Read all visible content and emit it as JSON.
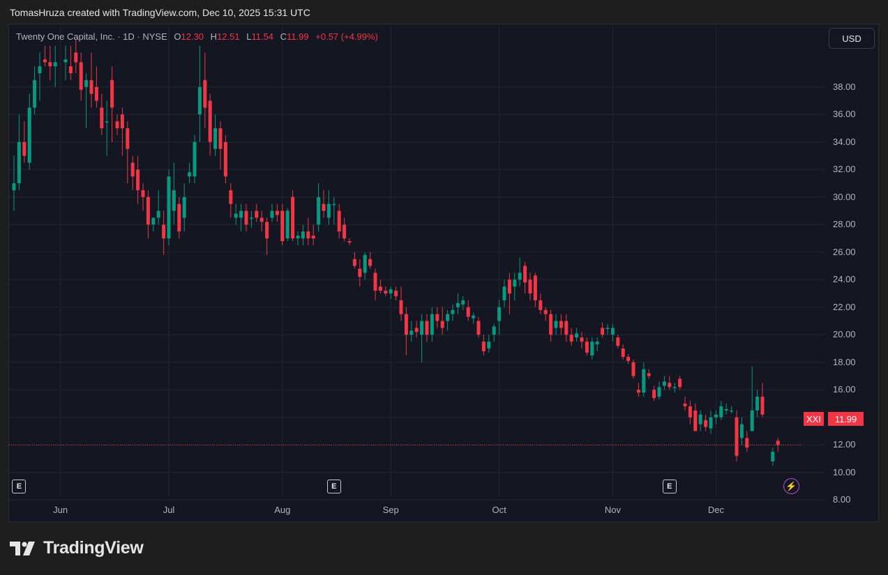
{
  "header": {
    "attribution": "TomasHruza created with TradingView.com, Dec 10, 2025 15:31 UTC"
  },
  "legend": {
    "name": "Twenty One Capital, Inc. · 1D · NYSE",
    "o_label": "O",
    "o_value": "12.30",
    "h_label": "H",
    "h_value": "12.51",
    "l_label": "L",
    "l_value": "11.54",
    "c_label": "C",
    "c_value": "11.99",
    "change": "+0.57 (+4.99%)"
  },
  "currency_button": "USD",
  "last_price": {
    "ticker": "XXI",
    "price": "11.99"
  },
  "markers": {
    "earnings_label": "E",
    "lightning_icon": "lightning-icon"
  },
  "branding": {
    "logo": "tradingview-logo",
    "name": "TradingView"
  },
  "colors": {
    "up": "#089981",
    "down": "#f23645",
    "background": "#141722",
    "grid": "#232733",
    "text": "#b2b5be"
  },
  "chart_data": {
    "type": "candlestick",
    "symbol": "XXI",
    "interval": "1D",
    "exchange": "NYSE",
    "y_ticks": [
      "38.00",
      "36.00",
      "34.00",
      "32.00",
      "30.00",
      "28.00",
      "26.00",
      "24.00",
      "22.00",
      "20.00",
      "18.00",
      "16.00",
      "14.00",
      "12.00",
      "10.00",
      "8.00"
    ],
    "y_axis_range": [
      7.3,
      40.4
    ],
    "x_ticks": [
      {
        "label": "Jun",
        "index": 9
      },
      {
        "label": "Jul",
        "index": 30
      },
      {
        "label": "Aug",
        "index": 52
      },
      {
        "label": "Sep",
        "index": 73
      },
      {
        "label": "Oct",
        "index": 94
      },
      {
        "label": "Nov",
        "index": 116
      },
      {
        "label": "Dec",
        "index": 136
      }
    ],
    "earnings_bars": [
      1,
      62,
      127
    ],
    "last_close": 11.99,
    "candles": [
      {
        "i": 0,
        "o": 30.5,
        "h": 33.0,
        "l": 29.0,
        "c": 31.0
      },
      {
        "i": 1,
        "o": 31.0,
        "h": 36.0,
        "l": 30.5,
        "c": 34.0
      },
      {
        "i": 2,
        "o": 34.0,
        "h": 35.5,
        "l": 32.5,
        "c": 33.0
      },
      {
        "i": 3,
        "o": 32.5,
        "h": 37.5,
        "l": 32.0,
        "c": 36.5
      },
      {
        "i": 4,
        "o": 36.5,
        "h": 39.5,
        "l": 36.0,
        "c": 38.5
      },
      {
        "i": 5,
        "o": 39.0,
        "h": 40.5,
        "l": 37.0,
        "c": 39.5
      },
      {
        "i": 6,
        "o": 40.0,
        "h": 41.0,
        "l": 39.5,
        "c": 39.8
      },
      {
        "i": 7,
        "o": 39.8,
        "h": 41.0,
        "l": 38.5,
        "c": 39.5
      },
      {
        "i": 8,
        "o": 39.5,
        "h": 41.0,
        "l": 38.0,
        "c": 39.8
      },
      {
        "i": 10,
        "o": 39.8,
        "h": 41.0,
        "l": 38.5,
        "c": 40.0
      },
      {
        "i": 11,
        "o": 39.5,
        "h": 41.0,
        "l": 38.5,
        "c": 39.0
      },
      {
        "i": 12,
        "o": 40.5,
        "h": 41.5,
        "l": 39.0,
        "c": 39.8
      },
      {
        "i": 13,
        "o": 39.8,
        "h": 40.5,
        "l": 37.0,
        "c": 37.8
      },
      {
        "i": 14,
        "o": 38.0,
        "h": 39.0,
        "l": 35.0,
        "c": 38.5
      },
      {
        "i": 15,
        "o": 38.5,
        "h": 40.5,
        "l": 36.5,
        "c": 37.5
      },
      {
        "i": 16,
        "o": 38.0,
        "h": 39.5,
        "l": 36.5,
        "c": 37.0
      },
      {
        "i": 17,
        "o": 36.5,
        "h": 37.5,
        "l": 34.5,
        "c": 35.0
      },
      {
        "i": 18,
        "o": 35.5,
        "h": 37.0,
        "l": 33.0,
        "c": 35.5
      },
      {
        "i": 19,
        "o": 38.5,
        "h": 39.5,
        "l": 34.0,
        "c": 36.5
      },
      {
        "i": 20,
        "o": 35.5,
        "h": 36.0,
        "l": 34.5,
        "c": 35.0
      },
      {
        "i": 21,
        "o": 36.0,
        "h": 36.5,
        "l": 33.0,
        "c": 35.0
      },
      {
        "i": 22,
        "o": 35.0,
        "h": 35.5,
        "l": 31.0,
        "c": 33.5
      },
      {
        "i": 23,
        "o": 32.5,
        "h": 33.0,
        "l": 30.5,
        "c": 31.5
      },
      {
        "i": 24,
        "o": 32.0,
        "h": 33.0,
        "l": 29.5,
        "c": 30.5
      },
      {
        "i": 25,
        "o": 30.5,
        "h": 31.0,
        "l": 29.0,
        "c": 30.0
      },
      {
        "i": 26,
        "o": 30.0,
        "h": 30.5,
        "l": 27.0,
        "c": 28.0
      },
      {
        "i": 27,
        "o": 28.0,
        "h": 28.5,
        "l": 27.5,
        "c": 28.5
      },
      {
        "i": 28,
        "o": 28.5,
        "h": 30.5,
        "l": 28.0,
        "c": 29.0
      },
      {
        "i": 29,
        "o": 28.0,
        "h": 29.0,
        "l": 25.8,
        "c": 27.0
      },
      {
        "i": 30,
        "o": 27.0,
        "h": 32.0,
        "l": 26.5,
        "c": 31.5
      },
      {
        "i": 31,
        "o": 29.0,
        "h": 32.5,
        "l": 28.0,
        "c": 30.5
      },
      {
        "i": 32,
        "o": 29.5,
        "h": 30.0,
        "l": 27.0,
        "c": 27.5
      },
      {
        "i": 33,
        "o": 28.5,
        "h": 31.0,
        "l": 27.5,
        "c": 30.0
      },
      {
        "i": 34,
        "o": 31.5,
        "h": 32.5,
        "l": 31.0,
        "c": 31.8
      },
      {
        "i": 35,
        "o": 31.5,
        "h": 34.5,
        "l": 31.0,
        "c": 34.0
      },
      {
        "i": 36,
        "o": 36.0,
        "h": 41.0,
        "l": 34.0,
        "c": 38.0
      },
      {
        "i": 37,
        "o": 38.5,
        "h": 40.5,
        "l": 35.0,
        "c": 36.5
      },
      {
        "i": 38,
        "o": 37.0,
        "h": 37.5,
        "l": 33.0,
        "c": 34.0
      },
      {
        "i": 39,
        "o": 33.5,
        "h": 36.0,
        "l": 33.0,
        "c": 35.0
      },
      {
        "i": 40,
        "o": 35.0,
        "h": 35.5,
        "l": 32.0,
        "c": 33.5
      },
      {
        "i": 41,
        "o": 34.0,
        "h": 34.5,
        "l": 31.0,
        "c": 31.5
      },
      {
        "i": 42,
        "o": 30.5,
        "h": 31.0,
        "l": 28.5,
        "c": 29.5
      },
      {
        "i": 43,
        "o": 28.5,
        "h": 29.5,
        "l": 28.0,
        "c": 28.8
      },
      {
        "i": 44,
        "o": 28.5,
        "h": 29.5,
        "l": 27.5,
        "c": 29.0
      },
      {
        "i": 45,
        "o": 29.0,
        "h": 29.5,
        "l": 27.5,
        "c": 28.0
      },
      {
        "i": 46,
        "o": 28.5,
        "h": 29.0,
        "l": 27.8,
        "c": 28.5
      },
      {
        "i": 47,
        "o": 29.0,
        "h": 29.5,
        "l": 28.2,
        "c": 28.5
      },
      {
        "i": 48,
        "o": 28.5,
        "h": 29.0,
        "l": 27.5,
        "c": 28.2
      },
      {
        "i": 49,
        "o": 28.2,
        "h": 28.5,
        "l": 25.8,
        "c": 27.0
      },
      {
        "i": 50,
        "o": 28.5,
        "h": 29.5,
        "l": 28.2,
        "c": 29.0
      },
      {
        "i": 51,
        "o": 29.0,
        "h": 29.5,
        "l": 28.2,
        "c": 28.7
      },
      {
        "i": 52,
        "o": 29.0,
        "h": 29.5,
        "l": 26.5,
        "c": 26.8
      },
      {
        "i": 53,
        "o": 27.0,
        "h": 29.2,
        "l": 26.8,
        "c": 29.0
      },
      {
        "i": 54,
        "o": 30.0,
        "h": 30.5,
        "l": 26.8,
        "c": 27.0
      },
      {
        "i": 55,
        "o": 27.0,
        "h": 27.5,
        "l": 26.5,
        "c": 27.2
      },
      {
        "i": 56,
        "o": 27.0,
        "h": 28.0,
        "l": 26.5,
        "c": 27.5
      },
      {
        "i": 57,
        "o": 27.5,
        "h": 28.5,
        "l": 26.5,
        "c": 27.0
      },
      {
        "i": 58,
        "o": 27.2,
        "h": 28.0,
        "l": 26.5,
        "c": 27.0
      },
      {
        "i": 59,
        "o": 28.0,
        "h": 31.0,
        "l": 27.5,
        "c": 30.0
      },
      {
        "i": 60,
        "o": 29.5,
        "h": 30.5,
        "l": 28.5,
        "c": 29.0
      },
      {
        "i": 61,
        "o": 28.5,
        "h": 30.5,
        "l": 28.0,
        "c": 29.5
      },
      {
        "i": 62,
        "o": 29.5,
        "h": 30.0,
        "l": 28.0,
        "c": 29.5
      },
      {
        "i": 63,
        "o": 29.0,
        "h": 29.5,
        "l": 27.0,
        "c": 27.5
      },
      {
        "i": 64,
        "o": 28.0,
        "h": 28.5,
        "l": 26.8,
        "c": 27.0
      },
      {
        "i": 65,
        "o": 26.8,
        "h": 27.0,
        "l": 26.5,
        "c": 26.7
      },
      {
        "i": 66,
        "o": 25.5,
        "h": 26.0,
        "l": 24.8,
        "c": 25.0
      },
      {
        "i": 67,
        "o": 24.8,
        "h": 25.5,
        "l": 23.5,
        "c": 24.2
      },
      {
        "i": 68,
        "o": 24.5,
        "h": 26.0,
        "l": 24.0,
        "c": 25.8
      },
      {
        "i": 69,
        "o": 25.5,
        "h": 26.0,
        "l": 24.8,
        "c": 25.0
      },
      {
        "i": 70,
        "o": 24.5,
        "h": 24.8,
        "l": 22.5,
        "c": 23.2
      },
      {
        "i": 71,
        "o": 23.5,
        "h": 24.0,
        "l": 23.0,
        "c": 23.2
      },
      {
        "i": 72,
        "o": 23.2,
        "h": 23.5,
        "l": 22.8,
        "c": 23.0
      },
      {
        "i": 73,
        "o": 23.0,
        "h": 23.5,
        "l": 22.6,
        "c": 23.3
      },
      {
        "i": 74,
        "o": 23.2,
        "h": 23.5,
        "l": 22.5,
        "c": 22.8
      },
      {
        "i": 75,
        "o": 22.5,
        "h": 23.5,
        "l": 21.0,
        "c": 21.5
      },
      {
        "i": 76,
        "o": 21.5,
        "h": 22.0,
        "l": 18.5,
        "c": 20.0
      },
      {
        "i": 77,
        "o": 20.0,
        "h": 21.0,
        "l": 19.5,
        "c": 20.3
      },
      {
        "i": 78,
        "o": 20.5,
        "h": 21.0,
        "l": 19.8,
        "c": 20.2
      },
      {
        "i": 79,
        "o": 20.0,
        "h": 21.5,
        "l": 18.0,
        "c": 21.0
      },
      {
        "i": 80,
        "o": 21.0,
        "h": 21.5,
        "l": 19.5,
        "c": 20.0
      },
      {
        "i": 81,
        "o": 20.0,
        "h": 22.0,
        "l": 19.5,
        "c": 21.5
      },
      {
        "i": 82,
        "o": 21.5,
        "h": 22.0,
        "l": 20.5,
        "c": 21.0
      },
      {
        "i": 83,
        "o": 21.0,
        "h": 22.0,
        "l": 20.0,
        "c": 20.5
      },
      {
        "i": 84,
        "o": 21.0,
        "h": 21.8,
        "l": 20.3,
        "c": 21.5
      },
      {
        "i": 85,
        "o": 21.5,
        "h": 22.2,
        "l": 21.0,
        "c": 21.8
      },
      {
        "i": 86,
        "o": 22.0,
        "h": 23.0,
        "l": 21.5,
        "c": 22.3
      },
      {
        "i": 87,
        "o": 22.2,
        "h": 22.8,
        "l": 21.8,
        "c": 22.5
      },
      {
        "i": 88,
        "o": 22.0,
        "h": 22.5,
        "l": 21.0,
        "c": 21.3
      },
      {
        "i": 89,
        "o": 21.2,
        "h": 21.6,
        "l": 20.8,
        "c": 21.4
      },
      {
        "i": 90,
        "o": 21.0,
        "h": 21.3,
        "l": 19.8,
        "c": 20.0
      },
      {
        "i": 91,
        "o": 19.5,
        "h": 20.0,
        "l": 18.5,
        "c": 18.8
      },
      {
        "i": 92,
        "o": 19.0,
        "h": 20.0,
        "l": 18.7,
        "c": 19.5
      },
      {
        "i": 93,
        "o": 20.0,
        "h": 20.8,
        "l": 19.5,
        "c": 20.6
      },
      {
        "i": 94,
        "o": 21.0,
        "h": 22.5,
        "l": 20.0,
        "c": 22.0
      },
      {
        "i": 95,
        "o": 22.5,
        "h": 24.0,
        "l": 22.0,
        "c": 23.5
      },
      {
        "i": 96,
        "o": 24.0,
        "h": 24.5,
        "l": 21.5,
        "c": 23.0
      },
      {
        "i": 97,
        "o": 23.5,
        "h": 24.5,
        "l": 22.5,
        "c": 24.0
      },
      {
        "i": 98,
        "o": 24.0,
        "h": 25.6,
        "l": 23.5,
        "c": 24.5
      },
      {
        "i": 99,
        "o": 25.0,
        "h": 25.3,
        "l": 23.0,
        "c": 23.8
      },
      {
        "i": 100,
        "o": 24.0,
        "h": 24.5,
        "l": 22.5,
        "c": 23.0
      },
      {
        "i": 101,
        "o": 24.3,
        "h": 24.5,
        "l": 22.0,
        "c": 22.5
      },
      {
        "i": 102,
        "o": 22.5,
        "h": 23.0,
        "l": 21.5,
        "c": 21.8
      },
      {
        "i": 103,
        "o": 21.8,
        "h": 22.0,
        "l": 21.0,
        "c": 21.5
      },
      {
        "i": 104,
        "o": 21.5,
        "h": 21.8,
        "l": 19.5,
        "c": 20.0
      },
      {
        "i": 105,
        "o": 20.5,
        "h": 21.5,
        "l": 20.0,
        "c": 21.0
      },
      {
        "i": 106,
        "o": 21.0,
        "h": 21.5,
        "l": 20.0,
        "c": 20.5
      },
      {
        "i": 107,
        "o": 21.0,
        "h": 21.5,
        "l": 19.5,
        "c": 20.0
      },
      {
        "i": 108,
        "o": 20.0,
        "h": 20.5,
        "l": 19.2,
        "c": 19.5
      },
      {
        "i": 109,
        "o": 19.8,
        "h": 20.5,
        "l": 19.5,
        "c": 20.1
      },
      {
        "i": 110,
        "o": 19.8,
        "h": 20.2,
        "l": 19.0,
        "c": 19.5
      },
      {
        "i": 111,
        "o": 19.5,
        "h": 19.8,
        "l": 18.5,
        "c": 18.7
      },
      {
        "i": 112,
        "o": 18.5,
        "h": 19.8,
        "l": 18.2,
        "c": 19.5
      },
      {
        "i": 113,
        "o": 19.3,
        "h": 19.8,
        "l": 18.8,
        "c": 19.5
      },
      {
        "i": 114,
        "o": 20.5,
        "h": 20.9,
        "l": 19.8,
        "c": 20.0
      },
      {
        "i": 115,
        "o": 20.5,
        "h": 20.8,
        "l": 20.0,
        "c": 20.5
      },
      {
        "i": 116,
        "o": 20.0,
        "h": 20.8,
        "l": 19.5,
        "c": 20.5
      },
      {
        "i": 117,
        "o": 19.8,
        "h": 20.0,
        "l": 19.0,
        "c": 19.2
      },
      {
        "i": 118,
        "o": 19.0,
        "h": 19.3,
        "l": 18.2,
        "c": 18.4
      },
      {
        "i": 119,
        "o": 18.4,
        "h": 18.6,
        "l": 17.9,
        "c": 18.1
      },
      {
        "i": 120,
        "o": 18.0,
        "h": 18.2,
        "l": 16.8,
        "c": 17.0
      },
      {
        "i": 121,
        "o": 16.0,
        "h": 16.5,
        "l": 15.5,
        "c": 15.8
      },
      {
        "i": 122,
        "o": 15.8,
        "h": 18.0,
        "l": 15.5,
        "c": 17.5
      },
      {
        "i": 123,
        "o": 17.2,
        "h": 17.5,
        "l": 16.8,
        "c": 17.0
      },
      {
        "i": 124,
        "o": 16.0,
        "h": 16.3,
        "l": 15.2,
        "c": 15.4
      },
      {
        "i": 125,
        "o": 15.5,
        "h": 16.6,
        "l": 15.3,
        "c": 16.2
      },
      {
        "i": 126,
        "o": 16.3,
        "h": 17.0,
        "l": 16.0,
        "c": 16.6
      },
      {
        "i": 127,
        "o": 16.5,
        "h": 17.0,
        "l": 16.0,
        "c": 16.2
      },
      {
        "i": 128,
        "o": 16.2,
        "h": 16.5,
        "l": 15.8,
        "c": 16.2
      },
      {
        "i": 129,
        "o": 16.8,
        "h": 17.0,
        "l": 16.0,
        "c": 16.2
      },
      {
        "i": 130,
        "o": 15.0,
        "h": 15.5,
        "l": 14.5,
        "c": 14.8
      },
      {
        "i": 131,
        "o": 14.8,
        "h": 15.2,
        "l": 13.5,
        "c": 14.0
      },
      {
        "i": 132,
        "o": 14.5,
        "h": 15.0,
        "l": 13.0,
        "c": 13.0
      },
      {
        "i": 133,
        "o": 13.5,
        "h": 14.5,
        "l": 13.0,
        "c": 14.2
      },
      {
        "i": 134,
        "o": 13.8,
        "h": 14.2,
        "l": 13.0,
        "c": 13.3
      },
      {
        "i": 135,
        "o": 13.2,
        "h": 14.5,
        "l": 12.8,
        "c": 14.0
      },
      {
        "i": 136,
        "o": 14.0,
        "h": 14.5,
        "l": 13.5,
        "c": 14.2
      },
      {
        "i": 137,
        "o": 14.0,
        "h": 15.2,
        "l": 13.8,
        "c": 14.8
      },
      {
        "i": 138,
        "o": 14.5,
        "h": 15.0,
        "l": 14.2,
        "c": 14.6
      },
      {
        "i": 139,
        "o": 14.5,
        "h": 14.8,
        "l": 14.3,
        "c": 14.5
      },
      {
        "i": 140,
        "o": 14.0,
        "h": 14.5,
        "l": 10.8,
        "c": 11.2
      },
      {
        "i": 141,
        "o": 12.5,
        "h": 14.0,
        "l": 12.0,
        "c": 13.5
      },
      {
        "i": 142,
        "o": 12.5,
        "h": 13.0,
        "l": 11.5,
        "c": 11.8
      },
      {
        "i": 143,
        "o": 13.0,
        "h": 17.7,
        "l": 13.0,
        "c": 14.5
      },
      {
        "i": 144,
        "o": 14.5,
        "h": 16.0,
        "l": 14.0,
        "c": 15.5
      },
      {
        "i": 145,
        "o": 15.5,
        "h": 16.5,
        "l": 14.0,
        "c": 14.2
      },
      {
        "i": 147,
        "o": 10.8,
        "h": 11.8,
        "l": 10.5,
        "c": 11.5
      },
      {
        "i": 148,
        "o": 12.3,
        "h": 12.5,
        "l": 11.5,
        "c": 12.0
      }
    ]
  }
}
